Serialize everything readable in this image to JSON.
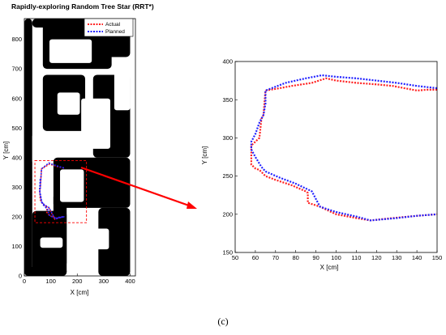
{
  "caption": "(c)",
  "colors": {
    "actual": "#ff2020",
    "planned": "#2020ff",
    "obstacle": "#000000",
    "zoom_box": "#ff0000",
    "arrow": "#ff0000"
  },
  "chart_data": [
    {
      "type": "line",
      "title": "Rapidly-exploring Random Tree Star (RRT*)",
      "xlabel": "X [cm]",
      "ylabel": "Y [cm]",
      "xlim": [
        0,
        420
      ],
      "ylim": [
        0,
        870
      ],
      "xticks": [
        "0",
        "100",
        "200",
        "300",
        "400"
      ],
      "yticks": [
        "0",
        "100",
        "200",
        "300",
        "400",
        "500",
        "600",
        "700",
        "800"
      ],
      "xtick_values": [
        0,
        100,
        200,
        300,
        400
      ],
      "ytick_values": [
        0,
        100,
        200,
        300,
        400,
        500,
        600,
        700,
        800
      ],
      "legend": {
        "position": "top-right",
        "entries": [
          "Actual",
          "Planned"
        ]
      },
      "zoom_region": {
        "x": [
          40,
          235
        ],
        "y": [
          180,
          390
        ]
      },
      "obstacles": [
        {
          "shape": "rect",
          "x": [
            0,
            30
          ],
          "y": [
            0,
            870
          ]
        },
        {
          "shape": "rect",
          "x": [
            0,
            160
          ],
          "y": [
            0,
            30
          ]
        },
        {
          "shape": "rect",
          "x": [
            30,
            160
          ],
          "y": [
            840,
            870
          ]
        },
        {
          "shape": "rect",
          "x": [
            110,
            160
          ],
          "y": [
            30,
            280
          ]
        },
        {
          "shape": "rect",
          "x": [
            30,
            160
          ],
          "y": [
            0,
            220
          ]
        },
        {
          "shape": "rect",
          "x": [
            110,
            400
          ],
          "y": [
            230,
            400
          ]
        },
        {
          "shape": "rect",
          "x": [
            280,
            400
          ],
          "y": [
            0,
            230
          ]
        },
        {
          "shape": "rect",
          "x": [
            260,
            400
          ],
          "y": [
            400,
            680
          ]
        },
        {
          "shape": "rect",
          "x": [
            70,
            230
          ],
          "y": [
            490,
            680
          ]
        },
        {
          "shape": "rect",
          "x": [
            70,
            330
          ],
          "y": [
            700,
            870
          ]
        },
        {
          "shape": "rect",
          "x": [
            160,
            400
          ],
          "y": [
            740,
            870
          ]
        }
      ],
      "free_space": [
        {
          "shape": "rect",
          "x": [
            60,
            145
          ],
          "y": [
            95,
            130
          ]
        },
        {
          "shape": "rect",
          "x": [
            265,
            320
          ],
          "y": [
            90,
            160
          ]
        },
        {
          "shape": "rect",
          "x": [
            135,
            225
          ],
          "y": [
            250,
            360
          ]
        },
        {
          "shape": "rect",
          "x": [
            215,
            325
          ],
          "y": [
            430,
            600
          ]
        },
        {
          "shape": "rect",
          "x": [
            125,
            210
          ],
          "y": [
            545,
            620
          ]
        },
        {
          "shape": "rect",
          "x": [
            95,
            255
          ],
          "y": [
            720,
            800
          ]
        },
        {
          "shape": "rect",
          "x": [
            340,
            400
          ],
          "y": [
            560,
            710
          ]
        },
        {
          "shape": "rect",
          "x": [
            30,
            70
          ],
          "y": [
            380,
            480
          ]
        }
      ],
      "series": [
        {
          "name": "Actual",
          "x": [
            150,
            125,
            95,
            65,
            60,
            58,
            62,
            65,
            78,
            93,
            115,
            128,
            140,
            150,
            125,
            105,
            95,
            85,
            85,
            70,
            60,
            58,
            62
          ],
          "y": [
            365,
            370,
            378,
            362,
            295,
            290,
            262,
            250,
            237,
            230,
            192,
            195,
            200,
            200,
            195,
            200,
            205,
            215,
            230,
            242,
            258,
            290,
            330
          ]
        },
        {
          "name": "Planned",
          "x": [
            150,
            120,
            93,
            65,
            60,
            58,
            64,
            66,
            80,
            92,
            117,
            130,
            150,
            125,
            105,
            95,
            88,
            72,
            65,
            58,
            60
          ],
          "y": [
            365,
            373,
            382,
            362,
            295,
            285,
            255,
            248,
            238,
            232,
            192,
            198,
            200,
            195,
            200,
            205,
            225,
            240,
            255,
            290,
            330
          ]
        }
      ]
    },
    {
      "type": "line",
      "title": "",
      "xlabel": "X [cm]",
      "ylabel": "Y [cm]",
      "xlim": [
        50,
        150
      ],
      "ylim": [
        150,
        400
      ],
      "xticks": [
        "50",
        "60",
        "70",
        "80",
        "90",
        "100",
        "110",
        "120",
        "130",
        "140",
        "150"
      ],
      "yticks": [
        "150",
        "200",
        "250",
        "300",
        "350",
        "400"
      ],
      "xtick_values": [
        50,
        60,
        70,
        80,
        90,
        100,
        110,
        120,
        130,
        140,
        150
      ],
      "ytick_values": [
        150,
        200,
        250,
        300,
        350,
        400
      ],
      "series": [
        {
          "name": "Actual",
          "x": [
            150,
            145,
            140,
            128,
            120,
            110,
            100,
            95,
            88,
            78,
            72,
            65,
            64,
            63,
            62,
            60,
            58,
            58,
            60,
            62,
            65,
            70,
            78,
            85,
            86,
            86,
            92,
            100,
            110,
            117,
            128,
            140,
            150
          ],
          "y": [
            363,
            363,
            362,
            368,
            370,
            372,
            375,
            378,
            372,
            368,
            365,
            362,
            330,
            325,
            300,
            295,
            290,
            265,
            260,
            258,
            250,
            245,
            238,
            230,
            228,
            215,
            210,
            200,
            195,
            192,
            195,
            198,
            200
          ]
        },
        {
          "name": "Planned",
          "x": [
            150,
            140,
            130,
            120,
            110,
            100,
            93,
            85,
            75,
            65,
            65,
            64,
            62,
            60,
            58,
            58,
            60,
            63,
            65,
            72,
            80,
            88,
            92,
            100,
            110,
            117,
            130,
            140,
            150
          ],
          "y": [
            365,
            368,
            372,
            375,
            378,
            380,
            382,
            378,
            372,
            362,
            345,
            330,
            320,
            305,
            295,
            285,
            275,
            262,
            256,
            248,
            240,
            230,
            210,
            203,
            197,
            192,
            195,
            198,
            200
          ]
        }
      ]
    }
  ]
}
